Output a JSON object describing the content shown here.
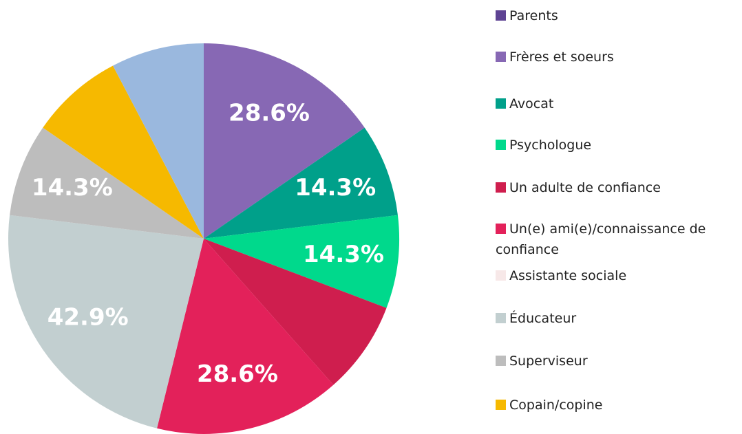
{
  "chart_data": {
    "type": "pie",
    "categories": [
      "Parents",
      "Frères et soeurs",
      "Avocat",
      "Psychologue",
      "Un adulte de confiance",
      "Un(e) ami(e)/connaissance de confiance",
      "Assistante sociale",
      "Éducateur",
      "Superviseur",
      "Copain/copine",
      null
    ],
    "values": [
      0,
      28.6,
      14.3,
      14.3,
      14.3,
      28.6,
      0,
      42.9,
      14.3,
      14.3,
      14.3
    ],
    "value_labels": [
      null,
      "28.6%",
      "14.3%",
      "14.3%",
      null,
      "28.6%",
      null,
      "42.9%",
      "14.3%",
      null,
      null
    ],
    "colors": [
      "#5e4393",
      "#8768b4",
      "#00a08a",
      "#00d98c",
      "#cf1e4e",
      "#e3215a",
      "#f7e8e8",
      "#c2cfd0",
      "#bdbdbd",
      "#f6b900",
      "#9ab8de"
    ],
    "legend": "right"
  }
}
